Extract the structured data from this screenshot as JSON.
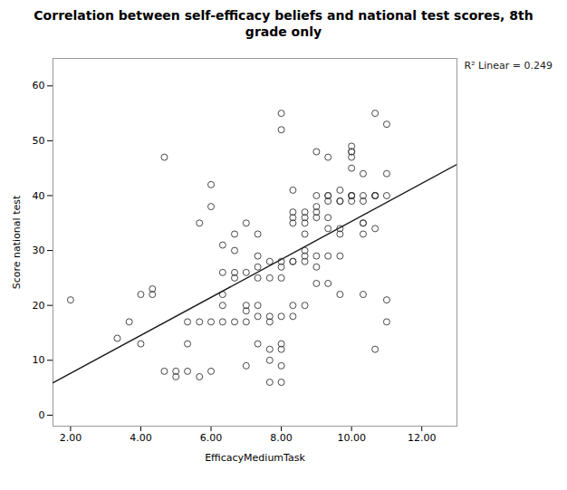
{
  "chart_data": {
    "type": "scatter",
    "title": "Correlation between self-efficacy beliefs and national test scores, 8th\ngrade only",
    "x_label": "EfficacyMediumTask",
    "y_label": "Score national test",
    "annotation": "R² Linear = 0.249",
    "xlim": [
      1.5,
      13.0
    ],
    "ylim": [
      -2,
      65
    ],
    "xticks": [
      {
        "value": 2,
        "label": "2.00"
      },
      {
        "value": 4,
        "label": "4.00"
      },
      {
        "value": 6,
        "label": "6.00"
      },
      {
        "value": 8,
        "label": "8.00"
      },
      {
        "value": 10,
        "label": "10.00"
      },
      {
        "value": 12,
        "label": "12.00"
      }
    ],
    "yticks": [
      0,
      10,
      20,
      30,
      40,
      50,
      60
    ],
    "grid": false,
    "marker": "circle",
    "color": "#333333",
    "x": [
      2.0,
      3.33,
      3.67,
      4.0,
      4.0,
      4.33,
      4.33,
      4.67,
      4.67,
      5.0,
      5.0,
      5.33,
      5.33,
      5.33,
      5.67,
      5.67,
      5.67,
      6.0,
      6.0,
      6.0,
      6.0,
      6.33,
      6.33,
      6.33,
      6.33,
      6.33,
      6.67,
      6.67,
      6.67,
      6.67,
      6.67,
      7.0,
      7.0,
      7.0,
      7.0,
      7.0,
      7.0,
      7.33,
      7.33,
      7.33,
      7.33,
      7.33,
      7.33,
      7.33,
      7.67,
      7.67,
      7.67,
      7.67,
      7.67,
      7.67,
      7.67,
      8.0,
      8.0,
      8.0,
      8.0,
      8.0,
      8.0,
      8.0,
      8.0,
      8.0,
      8.0,
      8.33,
      8.33,
      8.33,
      8.33,
      8.33,
      8.33,
      8.33,
      8.33,
      8.67,
      8.67,
      8.67,
      8.67,
      8.67,
      8.67,
      8.67,
      8.67,
      9.0,
      9.0,
      9.0,
      9.0,
      9.0,
      9.0,
      9.0,
      9.0,
      9.33,
      9.33,
      9.33,
      9.33,
      9.33,
      9.33,
      9.33,
      9.33,
      9.67,
      9.67,
      9.67,
      9.67,
      9.67,
      9.67,
      9.67,
      10.0,
      10.0,
      10.0,
      10.0,
      10.0,
      10.0,
      10.0,
      10.0,
      10.0,
      10.33,
      10.33,
      10.33,
      10.33,
      10.33,
      10.33,
      10.33,
      10.67,
      10.67,
      10.67,
      10.67,
      10.67,
      10.67,
      11.0,
      11.0,
      11.0,
      11.0,
      11.0
    ],
    "y": [
      21.0,
      14.0,
      17.0,
      13.0,
      22.0,
      23.0,
      22.0,
      47.0,
      8.0,
      7.0,
      8.0,
      17.0,
      8.0,
      13.0,
      35.0,
      17.0,
      7.0,
      17.0,
      8.0,
      42.0,
      38.0,
      22.0,
      31.0,
      26.0,
      17.0,
      20.0,
      33.0,
      26.0,
      25.0,
      17.0,
      30.0,
      19.0,
      26.0,
      20.0,
      17.0,
      9.0,
      35.0,
      27.0,
      25.0,
      18.0,
      20.0,
      33.0,
      13.0,
      29.0,
      28.0,
      18.0,
      25.0,
      17.0,
      12.0,
      10.0,
      6.0,
      55.0,
      52.0,
      28.0,
      27.0,
      9.0,
      6.0,
      18.0,
      25.0,
      12.0,
      13.0,
      35.0,
      37.0,
      36.0,
      28.0,
      28.0,
      41.0,
      18.0,
      20.0,
      37.0,
      36.0,
      30.0,
      35.0,
      33.0,
      28.0,
      29.0,
      20.0,
      40.0,
      38.0,
      36.0,
      29.0,
      37.0,
      24.0,
      27.0,
      48.0,
      47.0,
      39.0,
      36.0,
      29.0,
      34.0,
      24.0,
      40.0,
      40.0,
      41.0,
      34.0,
      39.0,
      39.0,
      33.0,
      22.0,
      29.0,
      49.0,
      48.0,
      48.0,
      47.0,
      45.0,
      40.0,
      39.0,
      40.0,
      40.0,
      40.0,
      39.0,
      35.0,
      33.0,
      35.0,
      22.0,
      44.0,
      40.0,
      40.0,
      40.0,
      34.0,
      12.0,
      55.0,
      53.0,
      44.0,
      40.0,
      21.0,
      17.0
    ],
    "fit_line": {
      "x": [
        1.5,
        13.0
      ],
      "y": [
        5.898,
        45.692
      ],
      "color": "#1a1a1a"
    }
  }
}
